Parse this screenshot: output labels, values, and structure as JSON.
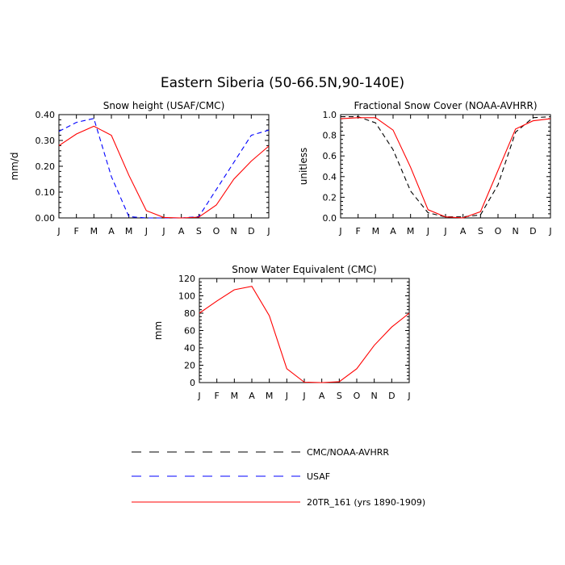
{
  "title": "Eastern Siberia (50-66.5N,90-140E)",
  "legend": [
    {
      "label": "CMC/NOAA-AVHRR",
      "color": "#000000",
      "dash": "dashed"
    },
    {
      "label": "USAF",
      "color": "#0000ff",
      "dash": "dashed"
    },
    {
      "label": "20TR_161 (yrs 1890-1909)",
      "color": "#ff0000",
      "dash": "solid"
    }
  ],
  "chart_data": [
    {
      "type": "line",
      "title": "Snow height (USAF/CMC)",
      "xlabel": "",
      "ylabel": "mm/d",
      "categories": [
        "J",
        "F",
        "M",
        "A",
        "M",
        "J",
        "J",
        "A",
        "S",
        "O",
        "N",
        "D",
        "J"
      ],
      "ylim": [
        0,
        0.4
      ],
      "yticks": [
        0,
        0.1,
        0.2,
        0.3,
        0.4
      ],
      "ytick_labels": [
        "0.00",
        "0.10",
        "0.20",
        "0.30",
        "0.40"
      ],
      "series": [
        {
          "name": "USAF",
          "color": "#0000ff",
          "dash": "dashed",
          "values": [
            0.335,
            0.37,
            0.385,
            0.16,
            0.005,
            0.0,
            0.0,
            0.0,
            0.005,
            0.11,
            0.215,
            0.32,
            0.34
          ]
        },
        {
          "name": "20TR_161 (yrs 1890-1909)",
          "color": "#ff0000",
          "dash": "solid",
          "values": [
            0.28,
            0.325,
            0.355,
            0.32,
            0.165,
            0.028,
            0.002,
            0.0,
            0.003,
            0.05,
            0.15,
            0.22,
            0.278
          ]
        }
      ]
    },
    {
      "type": "line",
      "title": "Fractional Snow Cover (NOAA-AVHRR)",
      "xlabel": "",
      "ylabel": "unitless",
      "categories": [
        "J",
        "F",
        "M",
        "A",
        "M",
        "J",
        "J",
        "A",
        "S",
        "O",
        "N",
        "D",
        "J"
      ],
      "ylim": [
        0,
        1.0
      ],
      "yticks": [
        0,
        0.2,
        0.4,
        0.6,
        0.8,
        1.0
      ],
      "ytick_labels": [
        "0.0",
        "0.2",
        "0.4",
        "0.6",
        "0.8",
        "1.0"
      ],
      "series": [
        {
          "name": "CMC/NOAA-AVHRR",
          "color": "#000000",
          "dash": "dashed",
          "values": [
            0.98,
            0.98,
            0.92,
            0.66,
            0.26,
            0.05,
            0.01,
            0.01,
            0.03,
            0.32,
            0.83,
            0.97,
            0.98
          ]
        },
        {
          "name": "20TR_161 (yrs 1890-1909)",
          "color": "#ff0000",
          "dash": "solid",
          "values": [
            0.96,
            0.97,
            0.97,
            0.85,
            0.49,
            0.08,
            0.01,
            0.0,
            0.06,
            0.46,
            0.86,
            0.94,
            0.96
          ]
        }
      ]
    },
    {
      "type": "line",
      "title": "Snow Water Equivalent (CMC)",
      "xlabel": "",
      "ylabel": "mm",
      "categories": [
        "J",
        "F",
        "M",
        "A",
        "M",
        "J",
        "J",
        "A",
        "S",
        "O",
        "N",
        "D",
        "J"
      ],
      "ylim": [
        0,
        120
      ],
      "yticks": [
        0,
        20,
        40,
        60,
        80,
        100,
        120
      ],
      "ytick_labels": [
        "0",
        "20",
        "40",
        "60",
        "80",
        "100",
        "120"
      ],
      "series": [
        {
          "name": "CMC/NOAA-AVHRR",
          "color": "#000000",
          "dash": "dashed",
          "values": [
            0,
            0,
            0,
            0,
            0,
            0,
            0,
            0,
            0,
            0,
            0,
            0,
            0
          ]
        },
        {
          "name": "20TR_161 (yrs 1890-1909)",
          "color": "#ff0000",
          "dash": "solid",
          "values": [
            80,
            94,
            107,
            111,
            77,
            16,
            0.5,
            0,
            1,
            16,
            43,
            64,
            80
          ]
        }
      ]
    }
  ]
}
